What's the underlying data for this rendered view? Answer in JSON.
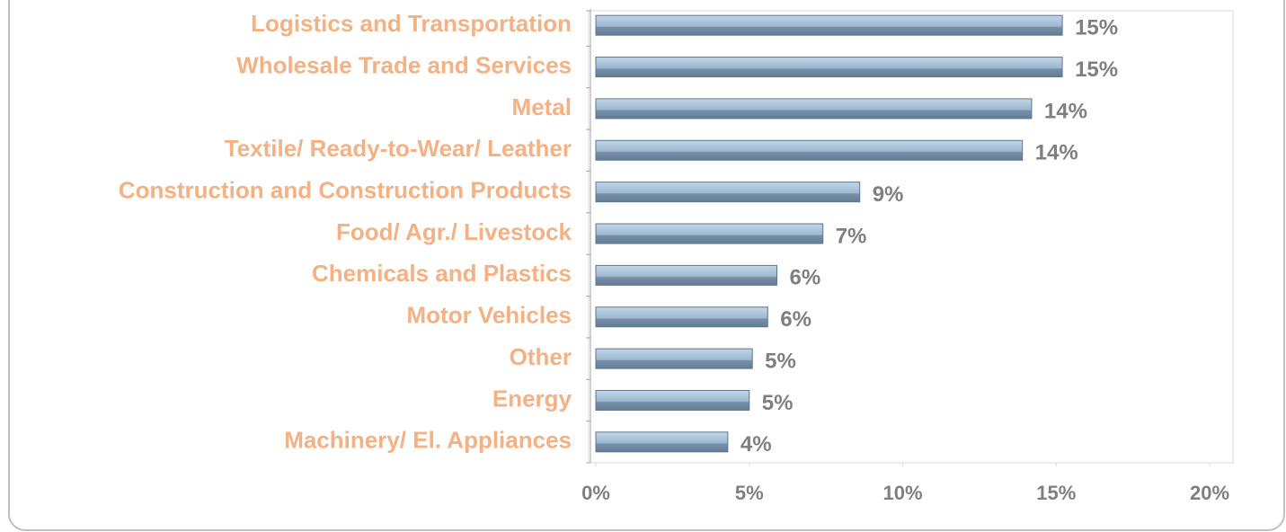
{
  "chart_data": {
    "type": "bar",
    "orientation": "horizontal",
    "categories": [
      "Logistics and Transportation",
      "Wholesale Trade and Services",
      "Metal",
      "Textile/ Ready-to-Wear/ Leather",
      "Construction and Construction Products",
      "Food/ Agr./ Livestock ",
      "Chemicals and Plastics",
      "Motor Vehicles",
      "Other",
      "Energy",
      "Machinery/ El. Appliances "
    ],
    "values": [
      15.2,
      15.2,
      14.2,
      13.9,
      8.6,
      7.4,
      5.9,
      5.6,
      5.1,
      5.0,
      4.3
    ],
    "value_labels": [
      "15%",
      "15%",
      "14%",
      "14%",
      "9%",
      "7%",
      "6%",
      "6%",
      "5%",
      "5%",
      "4%"
    ],
    "color": "#8aa8c4",
    "xlim": [
      0,
      20
    ],
    "xticks": [
      {
        "value": 0,
        "label": "0%"
      },
      {
        "value": 5,
        "label": "5%"
      },
      {
        "value": 10,
        "label": "10%"
      },
      {
        "value": 15,
        "label": "15%"
      },
      {
        "value": 20,
        "label": "20%"
      }
    ],
    "grid": false
  }
}
